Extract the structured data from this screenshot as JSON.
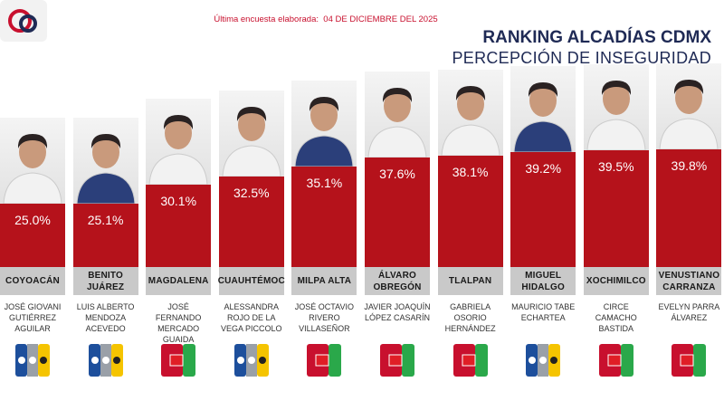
{
  "chart_data": {
    "type": "bar",
    "title": "RANKING ALCADÍAS CDMX",
    "subtitle": "PERCEPCIÓN DE INSEGURIDAD",
    "note_label": "Última encuesta elaborada:",
    "note_date": "04 DE DICIEMBRE DEL 2025",
    "color": "#b5121b",
    "categories": [
      "COYOACÁN",
      "BENITO JUÁREZ",
      "MAGDALENA",
      "CUAUHTÉMOC",
      "MILPA ALTA",
      "ÁLVARO OBREGÓN",
      "TLALPAN",
      "MIGUEL HIDALGO",
      "XOCHIMILCO",
      "VENUSTIANO CARRANZA"
    ],
    "candidates": [
      "JOSÉ GIOVANI GUTIÉRREZ AGUILAR",
      "LUIS ALBERTO MENDOZA ACEVEDO",
      "JOSÉ FERNANDO MERCADO GUAIDA",
      "ALESSANDRA ROJO DE LA VEGA PICCOLO",
      "JOSÉ OCTAVIO RIVERO VILLASEÑOR",
      "JAVIER JOAQUÍN LÓPEZ CASARÍN",
      "GABRIELA OSORIO HERNÁNDEZ",
      "MAURICIO TABE ECHARTEA",
      "CIRCE CAMACHO BASTIDA",
      "EVELYN PARRA ÁLVAREZ"
    ],
    "values": [
      25.0,
      25.1,
      30.1,
      32.5,
      35.1,
      37.6,
      38.1,
      39.2,
      39.5,
      39.8
    ],
    "value_labels": [
      "25.0%",
      "25.1%",
      "30.1%",
      "32.5%",
      "35.1%",
      "37.6%",
      "38.1%",
      "39.2%",
      "39.5%",
      "39.8%"
    ]
  }
}
